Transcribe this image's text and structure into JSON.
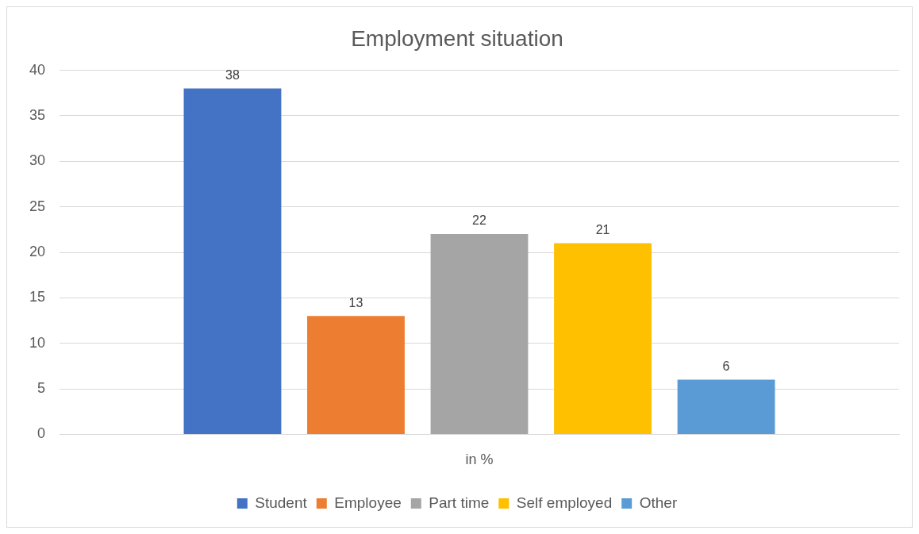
{
  "chart_data": {
    "type": "bar",
    "title": "Employment situation",
    "categories": [
      "in %"
    ],
    "series": [
      {
        "name": "Student",
        "color": "#4472c4",
        "values": [
          38
        ]
      },
      {
        "name": "Employee",
        "color": "#ed7d31",
        "values": [
          13
        ]
      },
      {
        "name": "Part time",
        "color": "#a5a5a5",
        "values": [
          22
        ]
      },
      {
        "name": "Self employed",
        "color": "#ffc000",
        "values": [
          21
        ]
      },
      {
        "name": "Other",
        "color": "#5b9bd5",
        "values": [
          6
        ]
      }
    ],
    "ylim": [
      0,
      40
    ],
    "yticks": [
      0,
      5,
      10,
      15,
      20,
      25,
      30,
      35,
      40
    ],
    "grid": "y",
    "legend": "bottom",
    "data_labels": true
  }
}
